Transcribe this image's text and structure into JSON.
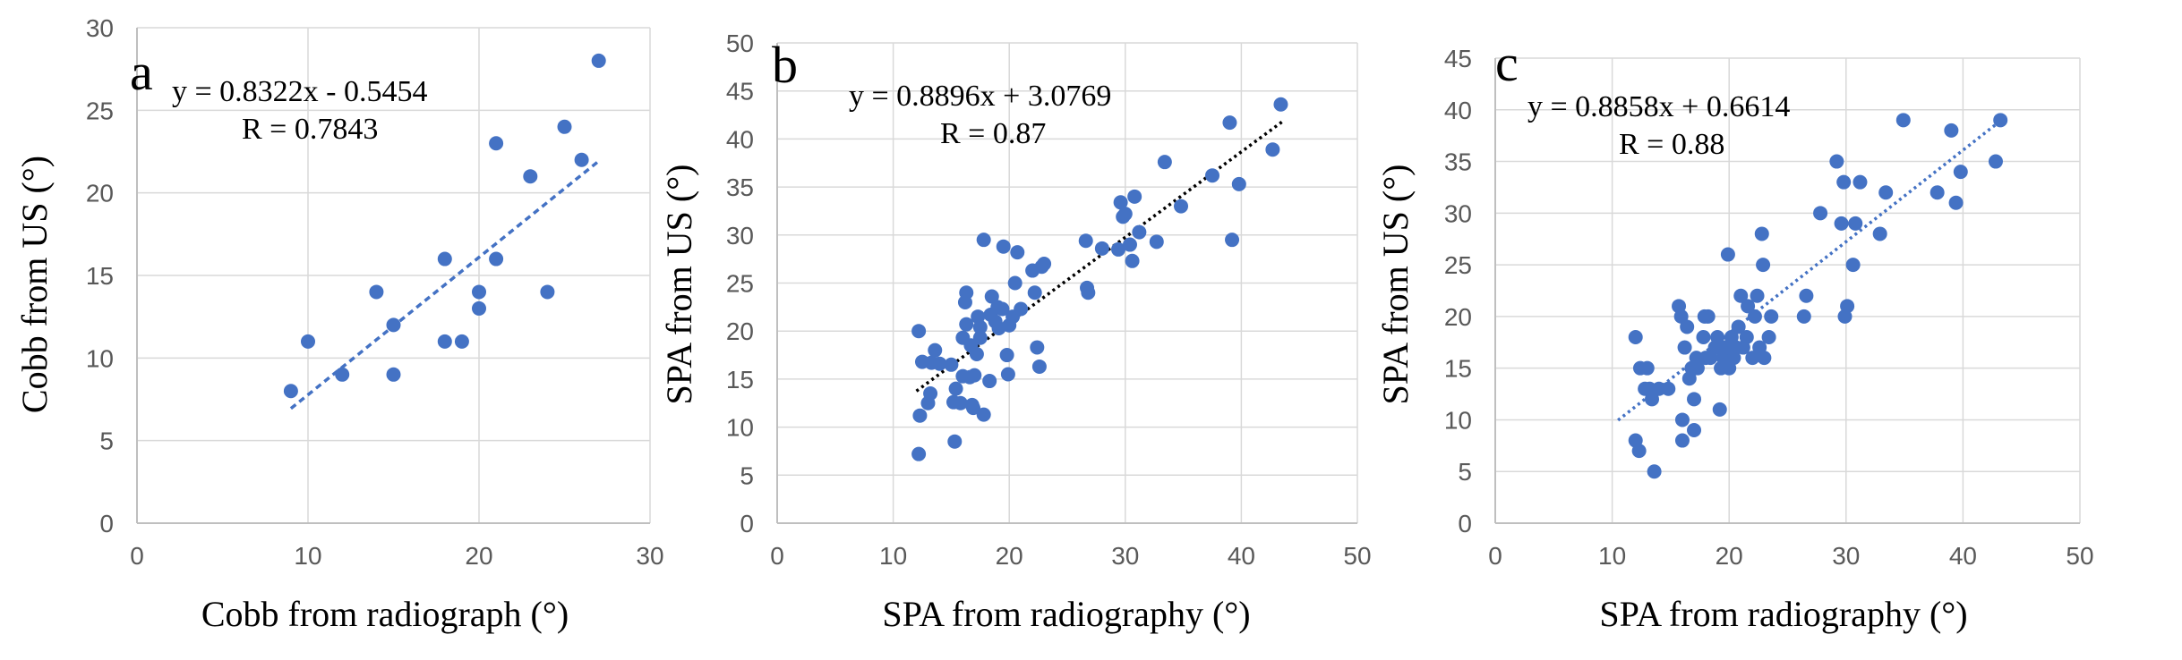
{
  "chart_data": [
    {
      "type": "scatter",
      "panel_label": "a",
      "xlabel": "Cobb from radiograph (°)",
      "ylabel": "Cobb from US (°)",
      "xlim": [
        0,
        30
      ],
      "ylim": [
        0,
        30
      ],
      "xticks": [
        0,
        10,
        20,
        30
      ],
      "yticks": [
        0,
        5,
        10,
        15,
        20,
        25,
        30
      ],
      "grid": true,
      "equation": "y = 0.8322x - 0.5454",
      "r_text": "R = 0.7843",
      "trendline": {
        "slope": 0.8322,
        "intercept": -0.5454,
        "x_range": [
          9,
          27
        ],
        "style": "dashed",
        "color": "#4472C4"
      },
      "marker_color": "#4472C4",
      "points": [
        [
          9,
          8
        ],
        [
          10,
          11
        ],
        [
          12,
          9
        ],
        [
          14,
          14
        ],
        [
          15,
          12
        ],
        [
          15,
          9
        ],
        [
          18,
          16
        ],
        [
          18,
          11
        ],
        [
          19,
          11
        ],
        [
          20,
          14
        ],
        [
          20,
          13
        ],
        [
          21,
          23
        ],
        [
          21,
          16
        ],
        [
          23,
          21
        ],
        [
          24,
          14
        ],
        [
          25,
          24
        ],
        [
          26,
          22
        ],
        [
          27,
          28
        ]
      ]
    },
    {
      "type": "scatter",
      "panel_label": "b",
      "xlabel": "SPA  from radiography (°)",
      "ylabel": "SPA from US (°)",
      "xlim": [
        0,
        50
      ],
      "ylim": [
        0,
        50
      ],
      "xticks": [
        0,
        10,
        20,
        30,
        40,
        50
      ],
      "yticks": [
        0,
        5,
        10,
        15,
        20,
        25,
        30,
        35,
        40,
        45,
        50
      ],
      "grid": true,
      "equation": "y = 0.8896x + 3.0769",
      "r_text": "R = 0.87",
      "trendline": {
        "slope": 0.8896,
        "intercept": 3.0769,
        "x_range": [
          12,
          43.5
        ],
        "style": "dotted",
        "color": "#000000"
      },
      "marker_color": "#4472C4",
      "points": [
        [
          12.2,
          7.2
        ],
        [
          12.3,
          11.2
        ],
        [
          12.2,
          20
        ],
        [
          12.5,
          16.8
        ],
        [
          13,
          12.5
        ],
        [
          13.2,
          13.5
        ],
        [
          13.3,
          16.7
        ],
        [
          13.6,
          18
        ],
        [
          14,
          16.6
        ],
        [
          15,
          16.5
        ],
        [
          15.3,
          8.5
        ],
        [
          15.2,
          12.6
        ],
        [
          15.4,
          14
        ],
        [
          15.8,
          12.5
        ],
        [
          16,
          15.3
        ],
        [
          16,
          19.3
        ],
        [
          16.2,
          23
        ],
        [
          16.3,
          24
        ],
        [
          16.3,
          20.7
        ],
        [
          16.6,
          15.2
        ],
        [
          16.7,
          18.5
        ],
        [
          16.8,
          12.3
        ],
        [
          16.9,
          12
        ],
        [
          17,
          15.4
        ],
        [
          17.2,
          17.6
        ],
        [
          17.3,
          21.5
        ],
        [
          17.5,
          19.3
        ],
        [
          17.5,
          20.4
        ],
        [
          17.8,
          11.3
        ],
        [
          17.8,
          29.5
        ],
        [
          18.3,
          14.8
        ],
        [
          18.4,
          21.7
        ],
        [
          18.5,
          23.6
        ],
        [
          18.8,
          21
        ],
        [
          19,
          22.5
        ],
        [
          19.1,
          20.3
        ],
        [
          19.4,
          22.3
        ],
        [
          19.5,
          28.8
        ],
        [
          19.8,
          17.5
        ],
        [
          19.9,
          15.5
        ],
        [
          20,
          20.6
        ],
        [
          20.3,
          21.5
        ],
        [
          20.5,
          25
        ],
        [
          20.7,
          28.2
        ],
        [
          21,
          22.3
        ],
        [
          22,
          26.3
        ],
        [
          22.2,
          24
        ],
        [
          22.4,
          18.3
        ],
        [
          22.6,
          16.3
        ],
        [
          22.8,
          26.7
        ],
        [
          23,
          27
        ],
        [
          26.6,
          29.4
        ],
        [
          26.7,
          24.5
        ],
        [
          26.8,
          24
        ],
        [
          28,
          28.6
        ],
        [
          29.4,
          28.5
        ],
        [
          29.6,
          33.4
        ],
        [
          29.8,
          31.9
        ],
        [
          30,
          32.2
        ],
        [
          30.4,
          29
        ],
        [
          30.6,
          27.3
        ],
        [
          30.8,
          34
        ],
        [
          31.2,
          30.3
        ],
        [
          32.7,
          29.3
        ],
        [
          33.4,
          37.6
        ],
        [
          34.8,
          33
        ],
        [
          37.5,
          36.2
        ],
        [
          39,
          41.7
        ],
        [
          39.2,
          29.5
        ],
        [
          39.8,
          35.3
        ],
        [
          42.7,
          38.9
        ],
        [
          43.4,
          43.6
        ]
      ]
    },
    {
      "type": "scatter",
      "panel_label": "c",
      "xlabel": "SPA from radiography (°)",
      "ylabel": "SPA from US (°)",
      "xlim": [
        0,
        50
      ],
      "ylim": [
        0,
        45
      ],
      "xticks": [
        0,
        10,
        20,
        30,
        40,
        50
      ],
      "yticks": [
        0,
        5,
        10,
        15,
        20,
        25,
        30,
        35,
        40,
        45
      ],
      "grid": true,
      "equation": "y = 0.8858x + 0.6614",
      "r_text": "R = 0.88",
      "trendline": {
        "slope": 0.8858,
        "intercept": 0.6614,
        "x_range": [
          10.5,
          43.5
        ],
        "style": "dotted",
        "color": "#4472C4"
      },
      "marker_color": "#4472C4",
      "points": [
        [
          12,
          18
        ],
        [
          12,
          8
        ],
        [
          12.3,
          7
        ],
        [
          12.4,
          15
        ],
        [
          12.8,
          13
        ],
        [
          13,
          15
        ],
        [
          13.2,
          13
        ],
        [
          13.4,
          12
        ],
        [
          13.6,
          5
        ],
        [
          14,
          13
        ],
        [
          14.8,
          13
        ],
        [
          15.7,
          21
        ],
        [
          15.9,
          20
        ],
        [
          16,
          8
        ],
        [
          16,
          10
        ],
        [
          16.2,
          17
        ],
        [
          16.4,
          19
        ],
        [
          16.6,
          14
        ],
        [
          16.8,
          15
        ],
        [
          17,
          12
        ],
        [
          17,
          9
        ],
        [
          17.2,
          16
        ],
        [
          17.3,
          15
        ],
        [
          17.8,
          18
        ],
        [
          17.9,
          20
        ],
        [
          18,
          16
        ],
        [
          18.2,
          20
        ],
        [
          18.4,
          16
        ],
        [
          18.8,
          17
        ],
        [
          19,
          18
        ],
        [
          19.1,
          17
        ],
        [
          19.2,
          11
        ],
        [
          19.3,
          15
        ],
        [
          19.5,
          16
        ],
        [
          19.7,
          17
        ],
        [
          19.9,
          26
        ],
        [
          20,
          15
        ],
        [
          20.2,
          18
        ],
        [
          20.4,
          16
        ],
        [
          20.6,
          17
        ],
        [
          20.8,
          19
        ],
        [
          21,
          22
        ],
        [
          21.2,
          17
        ],
        [
          21.5,
          18
        ],
        [
          21.6,
          21
        ],
        [
          22,
          16
        ],
        [
          22.2,
          20
        ],
        [
          22.4,
          22
        ],
        [
          22.6,
          17
        ],
        [
          22.8,
          28
        ],
        [
          22.9,
          25
        ],
        [
          23,
          16
        ],
        [
          23.4,
          18
        ],
        [
          23.6,
          20
        ],
        [
          26.4,
          20
        ],
        [
          26.6,
          22
        ],
        [
          27.8,
          30
        ],
        [
          29.2,
          35
        ],
        [
          29.6,
          29
        ],
        [
          29.8,
          33
        ],
        [
          29.9,
          20
        ],
        [
          30.1,
          21
        ],
        [
          30.6,
          25
        ],
        [
          30.8,
          29
        ],
        [
          31.2,
          33
        ],
        [
          32.9,
          28
        ],
        [
          33.4,
          32
        ],
        [
          34.9,
          39
        ],
        [
          37.8,
          32
        ],
        [
          39,
          38
        ],
        [
          39.4,
          31
        ],
        [
          39.8,
          34
        ],
        [
          42.8,
          35
        ],
        [
          43.2,
          39
        ]
      ]
    }
  ]
}
